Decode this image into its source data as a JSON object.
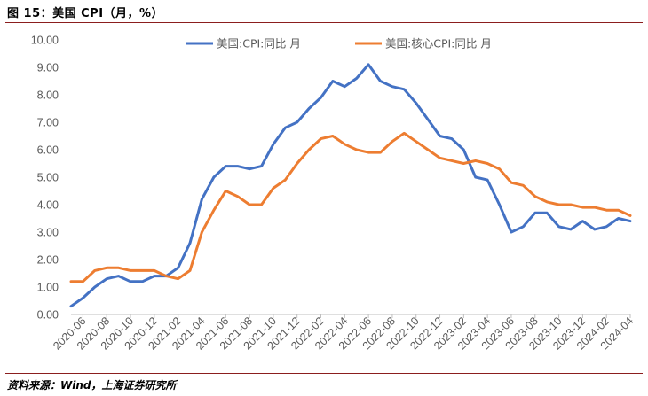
{
  "figure": {
    "title": "图 15：美国 CPI（月，%）",
    "source": "资料来源：Wind，上海证券研究所"
  },
  "chart_data": {
    "type": "line",
    "title": "",
    "xlabel": "",
    "ylabel": "",
    "ylim": [
      0,
      10
    ],
    "yticks": [
      "0.00",
      "1.00",
      "2.00",
      "3.00",
      "4.00",
      "5.00",
      "6.00",
      "7.00",
      "8.00",
      "9.00",
      "10.00"
    ],
    "x_tick_labels": [
      "2020-06",
      "2020-08",
      "2020-10",
      "2020-12",
      "2021-02",
      "2021-04",
      "2021-06",
      "2021-08",
      "2021-10",
      "2021-12",
      "2022-02",
      "2022-04",
      "2022-06",
      "2022-08",
      "2022-10",
      "2022-12",
      "2023-02",
      "2023-04",
      "2023-06",
      "2023-08",
      "2023-10",
      "2023-12",
      "2024-02",
      "2024-04"
    ],
    "grid": false,
    "legend_position": "top",
    "colors": {
      "cpi": "#4472c4",
      "core": "#ed7d31"
    },
    "x": [
      "2020-05",
      "2020-06",
      "2020-07",
      "2020-08",
      "2020-09",
      "2020-10",
      "2020-11",
      "2020-12",
      "2021-01",
      "2021-02",
      "2021-03",
      "2021-04",
      "2021-05",
      "2021-06",
      "2021-07",
      "2021-08",
      "2021-09",
      "2021-10",
      "2021-11",
      "2021-12",
      "2022-01",
      "2022-02",
      "2022-03",
      "2022-04",
      "2022-05",
      "2022-06",
      "2022-07",
      "2022-08",
      "2022-09",
      "2022-10",
      "2022-11",
      "2022-12",
      "2023-01",
      "2023-02",
      "2023-03",
      "2023-04",
      "2023-05",
      "2023-06",
      "2023-07",
      "2023-08",
      "2023-09",
      "2023-10",
      "2023-11",
      "2023-12",
      "2024-01",
      "2024-02",
      "2024-03",
      "2024-04"
    ],
    "series": [
      {
        "name": "美国:CPI:同比 月",
        "color": "#4472c4",
        "values": [
          0.3,
          0.6,
          1.0,
          1.3,
          1.4,
          1.2,
          1.2,
          1.4,
          1.4,
          1.7,
          2.6,
          4.2,
          5.0,
          5.4,
          5.4,
          5.3,
          5.4,
          6.2,
          6.8,
          7.0,
          7.5,
          7.9,
          8.5,
          8.3,
          8.6,
          9.1,
          8.5,
          8.3,
          8.2,
          7.7,
          7.1,
          6.5,
          6.4,
          6.0,
          5.0,
          4.9,
          4.0,
          3.0,
          3.2,
          3.7,
          3.7,
          3.2,
          3.1,
          3.4,
          3.1,
          3.2,
          3.5,
          3.4
        ]
      },
      {
        "name": "美国:核心CPI:同比 月",
        "color": "#ed7d31",
        "values": [
          1.2,
          1.2,
          1.6,
          1.7,
          1.7,
          1.6,
          1.6,
          1.6,
          1.4,
          1.3,
          1.6,
          3.0,
          3.8,
          4.5,
          4.3,
          4.0,
          4.0,
          4.6,
          4.9,
          5.5,
          6.0,
          6.4,
          6.5,
          6.2,
          6.0,
          5.9,
          5.9,
          6.3,
          6.6,
          6.3,
          6.0,
          5.7,
          5.6,
          5.5,
          5.6,
          5.5,
          5.3,
          4.8,
          4.7,
          4.3,
          4.1,
          4.0,
          4.0,
          3.9,
          3.9,
          3.8,
          3.8,
          3.6
        ]
      }
    ]
  }
}
